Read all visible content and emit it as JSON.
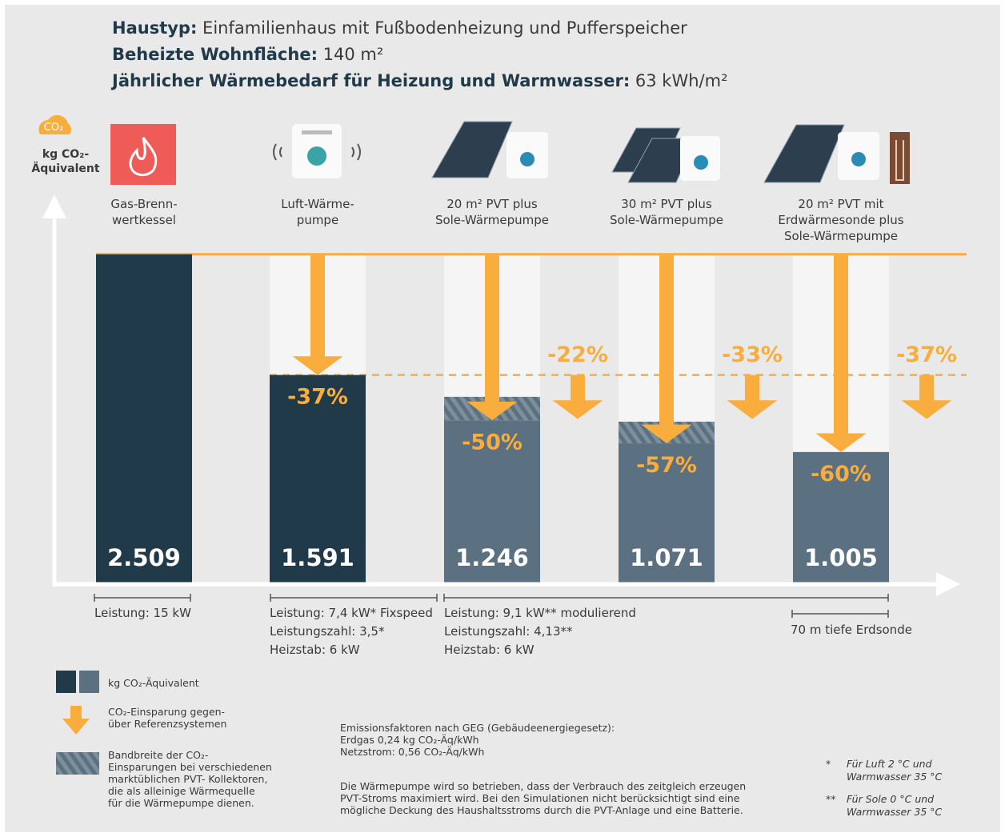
{
  "header": {
    "lines": [
      {
        "label": "Haustyp:",
        "text": "Einfamilienhaus mit Fußbodenheizung und Pufferspeicher"
      },
      {
        "label": "Beheizte Wohnfläche:",
        "text": "140 m²"
      },
      {
        "label": "Jährlicher Wärmebedarf für Heizung und Warmwasser:",
        "text": "63 kWh/m²"
      }
    ]
  },
  "chart_data": {
    "type": "bar",
    "y_icon_label": "CO₂",
    "y_label": [
      "kg CO₂-",
      "Äquivalent"
    ],
    "categories": [
      [
        "Gas-Brenn-",
        "wertkessel"
      ],
      [
        "Luft-Wärme-",
        "pumpe"
      ],
      [
        "20 m² PVT plus",
        "Sole-Wärmepumpe"
      ],
      [
        "30 m² PVT plus",
        "Sole-Wärmepumpe"
      ],
      [
        "20 m² PVT mit",
        "Erdwärmesonde plus",
        "Sole-Wärmepumpe"
      ]
    ],
    "values": [
      2509,
      1591,
      1246,
      1071,
      1005
    ],
    "value_labels": [
      "2.509",
      "1.591",
      "1.246",
      "1.071",
      "1.005"
    ],
    "colors": [
      "#213a4a",
      "#213a4a",
      "#5b7080",
      "#5b7080",
      "#5b7080"
    ],
    "range_high": [
      null,
      null,
      1425,
      1236,
      null
    ],
    "savings": {
      "values": [
        null,
        -37,
        -50,
        -57,
        -60
      ],
      "value_labels": [
        null,
        "-37%",
        "-50%",
        "-57%",
        "-60%"
      ]
    },
    "savings_vs_air": {
      "values": [
        null,
        null,
        -22,
        -33,
        -37
      ],
      "value_labels": [
        null,
        null,
        "-22%",
        "-33%",
        "-37%"
      ]
    },
    "ylim": [
      0,
      2800
    ],
    "accent_color": "#f8ad3c"
  },
  "specs": [
    {
      "lines": [
        "Leistung: 15 kW"
      ]
    },
    {
      "lines": [
        "Leistung: 7,4 kW* Fixspeed",
        "Leistungszahl: 3,5*",
        "Heizstab: 6 kW"
      ]
    },
    {
      "lines": [
        "Leistung: 9,1 kW** modulierend",
        "Leistungszahl: 4,13**",
        "Heizstab: 6 kW"
      ]
    },
    {
      "lines": [
        "70 m tiefe Erdsonde"
      ]
    }
  ],
  "legend": [
    {
      "lines": [
        "kg CO₂-Äquivalent"
      ]
    },
    {
      "lines": [
        "CO₂-Einsparung gegen-",
        "über Referenzsystemen"
      ]
    },
    {
      "lines": [
        "Bandbreite der CO₂-",
        "Einsparungen bei verschiedenen",
        "marktüblichen PVT- Kollektoren,",
        "die als alleinige Wärmequelle",
        "für die Wärmepumpe dienen."
      ]
    }
  ],
  "notes": {
    "emission": [
      "Emissionsfaktoren nach GEG (Gebäudeenergiegesetz):",
      "Erdgas 0,24 kg CO₂-Äq/kWh",
      "Netzstrom: 0,56 CO₂-Äq/kWh"
    ],
    "operation": [
      "Die Wärmepumpe wird so betrieben, dass der Verbrauch des zeitgleich erzeugen",
      "PVT-Stroms maximiert wird. Bei den Simulationen nicht berücksichtigt sind eine",
      "mögliche Deckung des Haushaltsstroms durch die PVT-Anlage und eine Batterie."
    ]
  },
  "footnotes": [
    {
      "mark": "*",
      "lines": [
        "Für Luft 2 °C und",
        "Warmwasser 35 °C"
      ]
    },
    {
      "mark": "**",
      "lines": [
        "Für Sole 0 °C und",
        "Warmwasser 35 °C"
      ]
    }
  ]
}
